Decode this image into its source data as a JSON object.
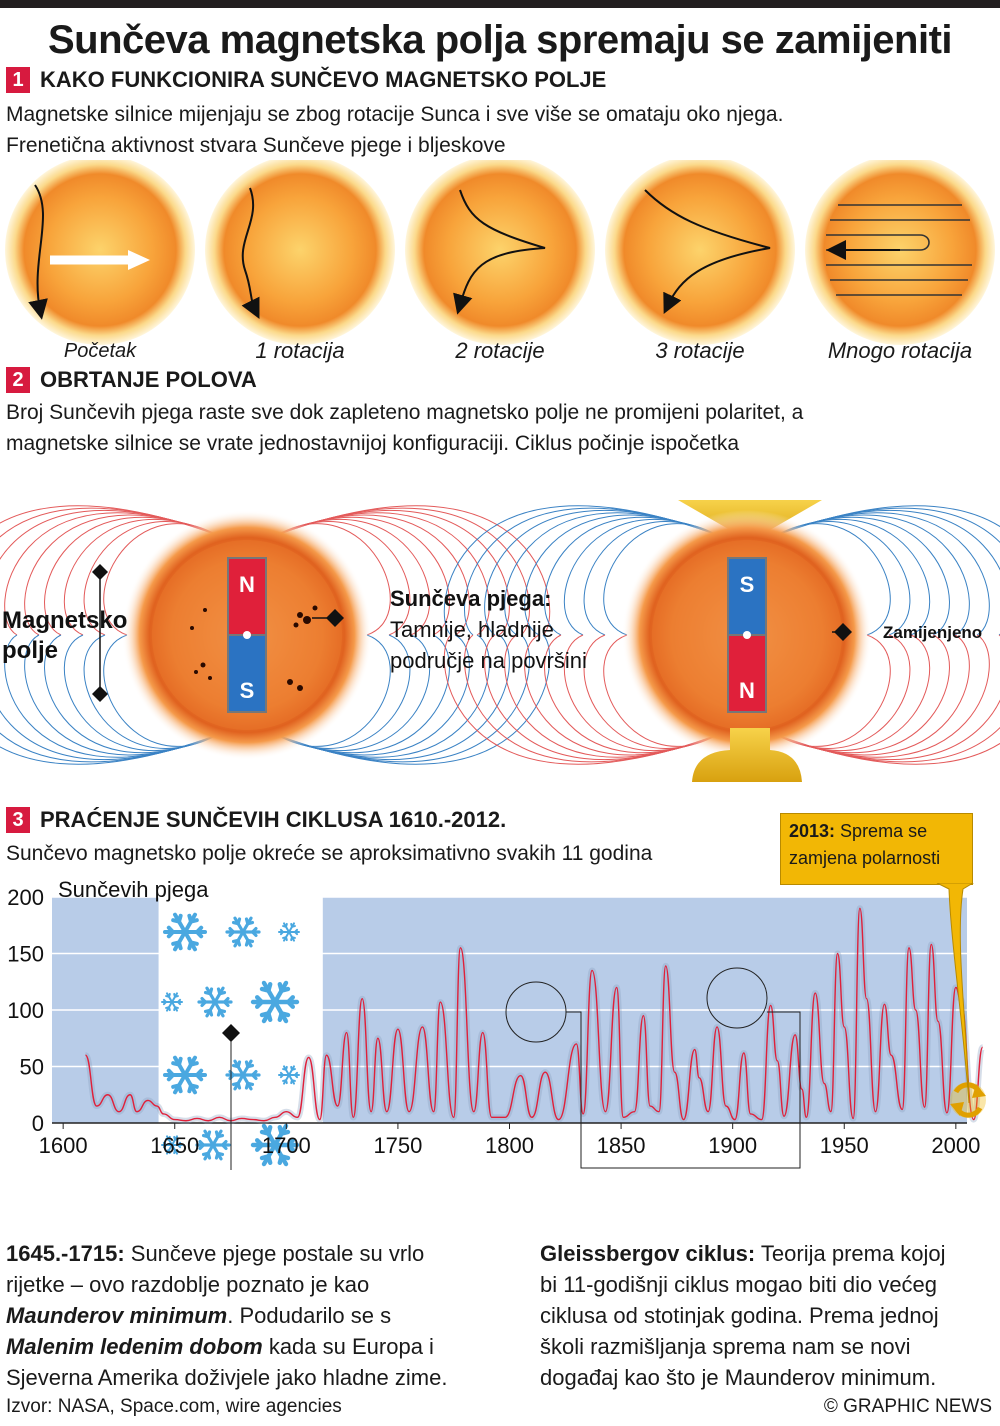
{
  "title": "Sunčeva magnetska polja spremaju se zamijeniti",
  "sections": [
    {
      "number": "1",
      "heading": "KAKO FUNKCIONIRA SUNČEVO MAGNETSKO POLJE",
      "text_line1": "Magnetske silnice mijenjaju se zbog rotacije Sunca i sve više se omataju oko njega.",
      "text_line2": "Frenetična aktivnost stvara Sunčeve pjege i bljeskove"
    },
    {
      "number": "2",
      "heading": "OBRTANJE POLOVA",
      "text_line1": "Broj Sunčevih pjega raste sve dok zapleteno magnetsko polje ne promijeni polaritet, a",
      "text_line2": "magnetske silnice se vrate jednostavnijoj konfiguraciji. Ciklus počinje ispočetka"
    },
    {
      "number": "3",
      "heading": "PRAĆENJE SUNČEVIH CIKLUSA 1610.-2012.",
      "text_line1": "Sunčevo magnetsko polje okreće se aproksimativno svakih 11 godina"
    }
  ],
  "rotation_labels": [
    "Početak",
    "1 rotacija",
    "2 rotacije",
    "3 rotacije",
    "Mnogo rotacija"
  ],
  "poles": {
    "field_label_line1": "Magnetsko",
    "field_label_line2": "polje",
    "sunspot_title": "Sunčeva pjega:",
    "sunspot_line1": "Tamnije, hladnije",
    "sunspot_line2": "područje na površini",
    "left_top": "N",
    "left_bottom": "S",
    "right_top": "S",
    "right_bottom": "N",
    "swapped_label": "Zamijenjeno"
  },
  "chart_data": {
    "type": "line",
    "ylabel": "Sunčevih pjega",
    "ylim": [
      0,
      200
    ],
    "yticks": [
      0,
      50,
      100,
      150,
      200
    ],
    "xlim": [
      1595,
      2005
    ],
    "xticks": [
      1600,
      1650,
      1700,
      1750,
      1800,
      1850,
      1900,
      1950,
      2000
    ],
    "maunder_period": [
      1645,
      1715
    ],
    "series": [
      {
        "x": [
          1610,
          1615,
          1620,
          1625,
          1630,
          1633,
          1638,
          1642,
          1645,
          1650,
          1655,
          1660,
          1665,
          1670,
          1675,
          1680,
          1685,
          1690,
          1695,
          1700,
          1705,
          1710,
          1715,
          1718,
          1723,
          1727,
          1730,
          1734,
          1738,
          1741,
          1745,
          1750,
          1755,
          1761,
          1766,
          1769,
          1775,
          1778,
          1784,
          1788,
          1792,
          1798,
          1805,
          1810,
          1816,
          1822,
          1830,
          1833,
          1837,
          1843,
          1848,
          1851,
          1856,
          1860,
          1863,
          1867,
          1870,
          1874,
          1878,
          1883,
          1885,
          1889,
          1893,
          1897,
          1901,
          1905,
          1908,
          1913,
          1917,
          1920,
          1923,
          1928,
          1931,
          1933,
          1937,
          1941,
          1944,
          1947,
          1950,
          1954,
          1957,
          1960,
          1964,
          1968,
          1971,
          1976,
          1979,
          1982,
          1986,
          1989,
          1992,
          1996,
          2000,
          2002,
          2008,
          2012
        ],
        "y": [
          60,
          15,
          25,
          10,
          25,
          10,
          20,
          15,
          8,
          3,
          2,
          4,
          2,
          5,
          2,
          4,
          3,
          2,
          5,
          10,
          5,
          58,
          3,
          60,
          15,
          80,
          5,
          110,
          10,
          75,
          10,
          83,
          10,
          85,
          10,
          107,
          5,
          155,
          10,
          80,
          5,
          5,
          42,
          5,
          45,
          3,
          70,
          8,
          135,
          10,
          120,
          5,
          10,
          95,
          15,
          10,
          139,
          45,
          3,
          65,
          40,
          10,
          85,
          15,
          3,
          62,
          8,
          3,
          104,
          55,
          6,
          78,
          30,
          5,
          115,
          35,
          10,
          150,
          85,
          4,
          190,
          110,
          10,
          105,
          60,
          12,
          155,
          100,
          14,
          158,
          90,
          9,
          120,
          110,
          3,
          67
        ]
      }
    ]
  },
  "callouts": {
    "maunder_bold": "1645.-1715:",
    "maunder_l1": " Sunčeve pjege postale su vrlo",
    "maunder_l2": "rijetke – ovo razdoblje poznato je kao",
    "maunder_l3a": "Maunderov minimum",
    "maunder_l3b": ". Podudarilo se s",
    "maunder_l4a": "Malenim ledenim dobom",
    "maunder_l4b": " kada su Europa i",
    "maunder_l5": "Sjeverna Amerika doživjele jako hladne zime.",
    "gleiss_bold": "Gleissbergov ciklus:",
    "gleiss_l1": " Teorija prema kojoj",
    "gleiss_l2": "bi 11-godišnji ciklus mogao biti dio većeg",
    "gleiss_l3": "ciklusa od stotinjak godina. Prema jednoj",
    "gleiss_l4": "školi razmišljanja sprema nam se novi",
    "gleiss_l5": "događaj kao što je Maunderov minimum.",
    "box_bold": "2013:",
    "box_l1": " Sprema se",
    "box_l2": "zamjena polarnosti"
  },
  "source": "Izvor: NASA, Space.com, wire agencies",
  "credit": "© GRAPHIC NEWS",
  "colors": {
    "accent_red": "#d71a3f",
    "chart_bg": "#b8cce8",
    "line": "#e0203a",
    "field_red": "#e35a5a",
    "field_blue": "#3a82c4",
    "callout_box": "#f2b705"
  }
}
